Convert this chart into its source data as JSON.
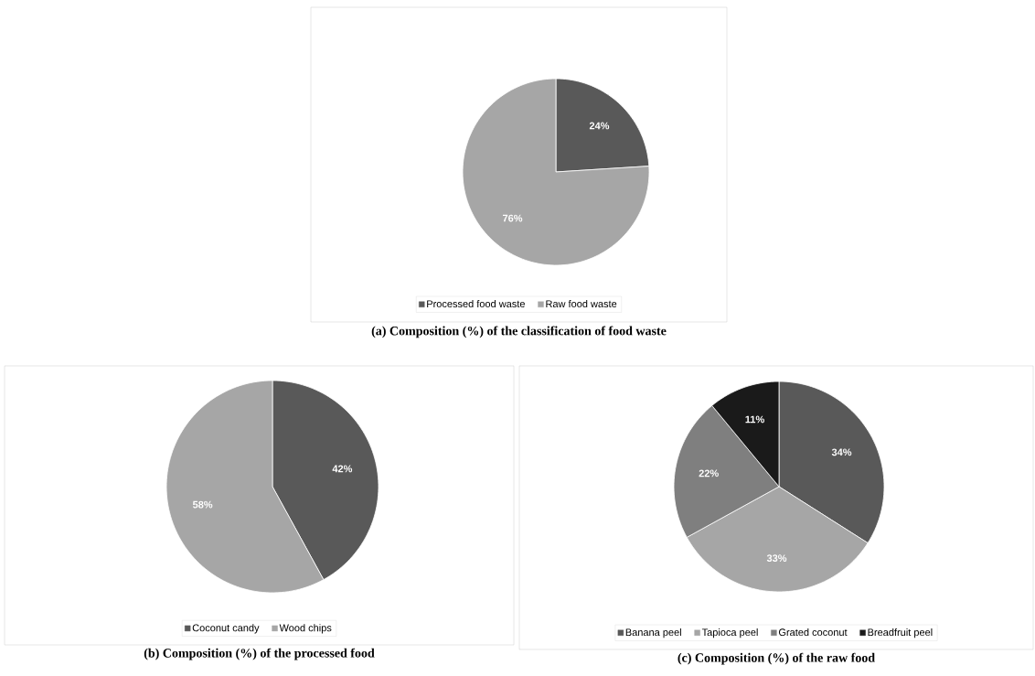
{
  "chart_data": [
    {
      "type": "pie",
      "title": "(a) Composition (%) of the classification of food waste",
      "categories": [
        "Processed food waste",
        "Raw food waste"
      ],
      "values": [
        24,
        76
      ],
      "value_labels": [
        "24%",
        "76%"
      ],
      "colors": [
        "#595959",
        "#a6a6a6"
      ],
      "legend": "bottom"
    },
    {
      "type": "pie",
      "title": "(b) Composition (%) of the processed food",
      "categories": [
        "Coconut candy",
        "Wood chips"
      ],
      "values": [
        42,
        58
      ],
      "value_labels": [
        "42%",
        "58%"
      ],
      "colors": [
        "#595959",
        "#a6a6a6"
      ],
      "legend": "bottom"
    },
    {
      "type": "pie",
      "title": "(c) Composition (%) of the raw food",
      "categories": [
        "Banana peel",
        "Tapioca peel",
        "Grated coconut",
        "Breadfruit peel"
      ],
      "values": [
        34,
        33,
        22,
        11
      ],
      "value_labels": [
        "34%",
        "33%",
        "22%",
        "11%"
      ],
      "colors": [
        "#595959",
        "#a6a6a6",
        "#7f7f7f",
        "#1a1a1a"
      ],
      "legend": "bottom"
    }
  ]
}
